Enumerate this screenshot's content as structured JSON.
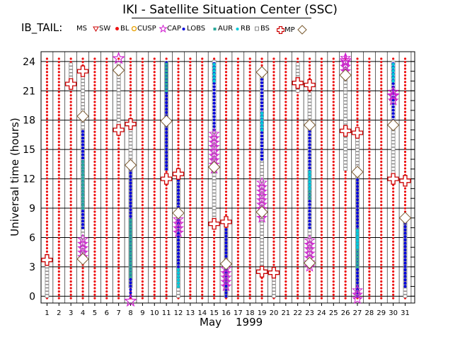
{
  "title": "IKI - Satellite Situation Center (SSC)",
  "tail_label": "IB_TAIL:",
  "legend": [
    {
      "label": "MS",
      "symbol": "none",
      "color": "#000000"
    },
    {
      "label": "SW",
      "symbol": "tri-down",
      "color": "#cc0000"
    },
    {
      "label": "BL",
      "symbol": "dot",
      "color": "#ee1111"
    },
    {
      "label": "CUSP",
      "symbol": "dot-small",
      "color": "#e8a000"
    },
    {
      "label": "CAP",
      "symbol": "star",
      "color": "#d020d0"
    },
    {
      "label": "LOBS",
      "symbol": "dot-small",
      "color": "#0000dd"
    },
    {
      "label": "AUR",
      "symbol": "square-small",
      "color": "#2aa89a"
    },
    {
      "label": "RB",
      "symbol": "dot-small",
      "color": "#00c8d8"
    },
    {
      "label": "BS",
      "symbol": "square",
      "color": "#888888"
    },
    {
      "label": "MP",
      "symbol": "cross",
      "color": "#cc0000"
    },
    {
      "label": "",
      "symbol": "diamond",
      "color": "#7a5a30"
    }
  ],
  "chart_data": {
    "type": "scatter",
    "xlabel_month": "May",
    "xlabel_year": "1999",
    "ylabel": "Universal time (hours)",
    "xlim": [
      0.5,
      31.8
    ],
    "ylim": [
      -0.7,
      25
    ],
    "x_ticks": [
      "1",
      "2",
      "3",
      "4",
      "5",
      "6",
      "7",
      "8",
      "9",
      "10",
      "11",
      "12",
      "13",
      "14",
      "15",
      "16",
      "17",
      "18",
      "19",
      "20",
      "21",
      "22",
      "23",
      "24",
      "25",
      "26",
      "27",
      "28",
      "29",
      "30",
      "31"
    ],
    "y_ticks": [
      "0",
      "3",
      "6",
      "9",
      "12",
      "15",
      "18",
      "21",
      "24"
    ],
    "grid": true,
    "background_region": {
      "type": "BL",
      "color": "#ee1111",
      "description": "all columns filled with red BL points"
    },
    "segments": [
      {
        "day": 1,
        "type": "BS",
        "from": 0,
        "to": 3.5
      },
      {
        "day": 3,
        "type": "BS",
        "from": 22,
        "to": 24
      },
      {
        "day": 4,
        "type": "BS",
        "from": 4,
        "to": 23
      },
      {
        "day": 4,
        "type": "LOBS",
        "from": 7,
        "to": 17
      },
      {
        "day": 4,
        "type": "AUR",
        "from": 9,
        "to": 14
      },
      {
        "day": 4,
        "type": "CAP",
        "from": 4,
        "to": 6
      },
      {
        "day": 7,
        "type": "BS",
        "from": 17,
        "to": 24
      },
      {
        "day": 8,
        "type": "BS",
        "from": 1,
        "to": 17
      },
      {
        "day": 8,
        "type": "LOBS",
        "from": 0,
        "to": 13
      },
      {
        "day": 8,
        "type": "AUR",
        "from": 2,
        "to": 8
      },
      {
        "day": 11,
        "type": "BS",
        "from": 13,
        "to": 24
      },
      {
        "day": 11,
        "type": "LOBS",
        "from": 13,
        "to": 24
      },
      {
        "day": 11,
        "type": "AUR",
        "from": 21,
        "to": 24
      },
      {
        "day": 12,
        "type": "BS",
        "from": 0,
        "to": 12
      },
      {
        "day": 12,
        "type": "LOBS",
        "from": 2,
        "to": 12
      },
      {
        "day": 12,
        "type": "RB",
        "from": 1,
        "to": 3
      },
      {
        "day": 12,
        "type": "CAP",
        "from": 6.5,
        "to": 8
      },
      {
        "day": 15,
        "type": "BS",
        "from": 8,
        "to": 24
      },
      {
        "day": 15,
        "type": "LOBS",
        "from": 17,
        "to": 24
      },
      {
        "day": 15,
        "type": "RB",
        "from": 22,
        "to": 24
      },
      {
        "day": 15,
        "type": "CAP",
        "from": 13,
        "to": 17
      },
      {
        "day": 16,
        "type": "BS",
        "from": 0,
        "to": 7
      },
      {
        "day": 16,
        "type": "LOBS",
        "from": 0,
        "to": 7
      },
      {
        "day": 16,
        "type": "CAP",
        "from": 1,
        "to": 3
      },
      {
        "day": 19,
        "type": "BS",
        "from": 3,
        "to": 23
      },
      {
        "day": 19,
        "type": "LOBS",
        "from": 14,
        "to": 23
      },
      {
        "day": 19,
        "type": "RB",
        "from": 17,
        "to": 19
      },
      {
        "day": 19,
        "type": "CAP",
        "from": 8,
        "to": 12
      },
      {
        "day": 20,
        "type": "BS",
        "from": 0,
        "to": 2
      },
      {
        "day": 22,
        "type": "BS",
        "from": 21,
        "to": 24
      },
      {
        "day": 23,
        "type": "BS",
        "from": 3,
        "to": 21
      },
      {
        "day": 23,
        "type": "LOBS",
        "from": 7,
        "to": 17
      },
      {
        "day": 23,
        "type": "AUR",
        "from": 10,
        "to": 13
      },
      {
        "day": 23,
        "type": "RB",
        "from": 11,
        "to": 13
      },
      {
        "day": 23,
        "type": "CAP",
        "from": 3,
        "to": 6
      },
      {
        "day": 26,
        "type": "BS",
        "from": 13,
        "to": 24
      },
      {
        "day": 26,
        "type": "CAP",
        "from": 23,
        "to": 24.5
      },
      {
        "day": 27,
        "type": "BS",
        "from": 0,
        "to": 16
      },
      {
        "day": 27,
        "type": "LOBS",
        "from": 0,
        "to": 12
      },
      {
        "day": 27,
        "type": "AUR",
        "from": 3,
        "to": 7
      },
      {
        "day": 27,
        "type": "RB",
        "from": 5,
        "to": 7
      },
      {
        "day": 27,
        "type": "CAP",
        "from": -0.3,
        "to": 1
      },
      {
        "day": 30,
        "type": "BS",
        "from": 12,
        "to": 24
      },
      {
        "day": 30,
        "type": "LOBS",
        "from": 18,
        "to": 24
      },
      {
        "day": 30,
        "type": "RB",
        "from": 22,
        "to": 24
      },
      {
        "day": 30,
        "type": "CAP",
        "from": 20,
        "to": 21
      },
      {
        "day": 31,
        "type": "BS",
        "from": 0,
        "to": 8
      },
      {
        "day": 31,
        "type": "LOBS",
        "from": 1,
        "to": 8
      }
    ],
    "markers": [
      {
        "day": 1,
        "type": "MP",
        "y": 3.7
      },
      {
        "day": 3,
        "type": "MP",
        "y": 21.7
      },
      {
        "day": 4,
        "type": "MP",
        "y": 23
      },
      {
        "day": 4,
        "type": "BS_crossing",
        "y": 18.4
      },
      {
        "day": 4,
        "type": "BS_crossing",
        "y": 3.8
      },
      {
        "day": 7,
        "type": "CAP",
        "y": 24.3
      },
      {
        "day": 7,
        "type": "BS_crossing",
        "y": 23.1
      },
      {
        "day": 7,
        "type": "MP",
        "y": 17
      },
      {
        "day": 8,
        "type": "MP",
        "y": 17.6
      },
      {
        "day": 8,
        "type": "BS_crossing",
        "y": 13.4
      },
      {
        "day": 8,
        "type": "CAP",
        "y": -0.5
      },
      {
        "day": 11,
        "type": "BS_crossing",
        "y": 17.9
      },
      {
        "day": 11,
        "type": "MP",
        "y": 12
      },
      {
        "day": 12,
        "type": "MP",
        "y": 12.5
      },
      {
        "day": 12,
        "type": "BS_crossing",
        "y": 8.5
      },
      {
        "day": 15,
        "type": "BS_crossing",
        "y": 13.2
      },
      {
        "day": 15,
        "type": "MP",
        "y": 7.4
      },
      {
        "day": 16,
        "type": "MP",
        "y": 7.6
      },
      {
        "day": 16,
        "type": "BS_crossing",
        "y": 3.3
      },
      {
        "day": 19,
        "type": "BS_crossing",
        "y": 22.9
      },
      {
        "day": 19,
        "type": "BS_crossing",
        "y": 8.6
      },
      {
        "day": 19,
        "type": "MP",
        "y": 2.5
      },
      {
        "day": 20,
        "type": "MP",
        "y": 2.4
      },
      {
        "day": 22,
        "type": "MP",
        "y": 21.8
      },
      {
        "day": 23,
        "type": "MP",
        "y": 21.6
      },
      {
        "day": 23,
        "type": "BS_crossing",
        "y": 17.5
      },
      {
        "day": 23,
        "type": "BS_crossing",
        "y": 3.4
      },
      {
        "day": 26,
        "type": "CAP",
        "y": 24.1
      },
      {
        "day": 26,
        "type": "BS_crossing",
        "y": 22.6
      },
      {
        "day": 26,
        "type": "MP",
        "y": 16.9
      },
      {
        "day": 27,
        "type": "MP",
        "y": 16.7
      },
      {
        "day": 27,
        "type": "BS_crossing",
        "y": 12.7
      },
      {
        "day": 30,
        "type": "CAP",
        "y": 20.5
      },
      {
        "day": 30,
        "type": "BS_crossing",
        "y": 17.5
      },
      {
        "day": 30,
        "type": "MP",
        "y": 12
      },
      {
        "day": 31,
        "type": "MP",
        "y": 11.8
      },
      {
        "day": 31,
        "type": "BS_crossing",
        "y": 8
      }
    ]
  }
}
